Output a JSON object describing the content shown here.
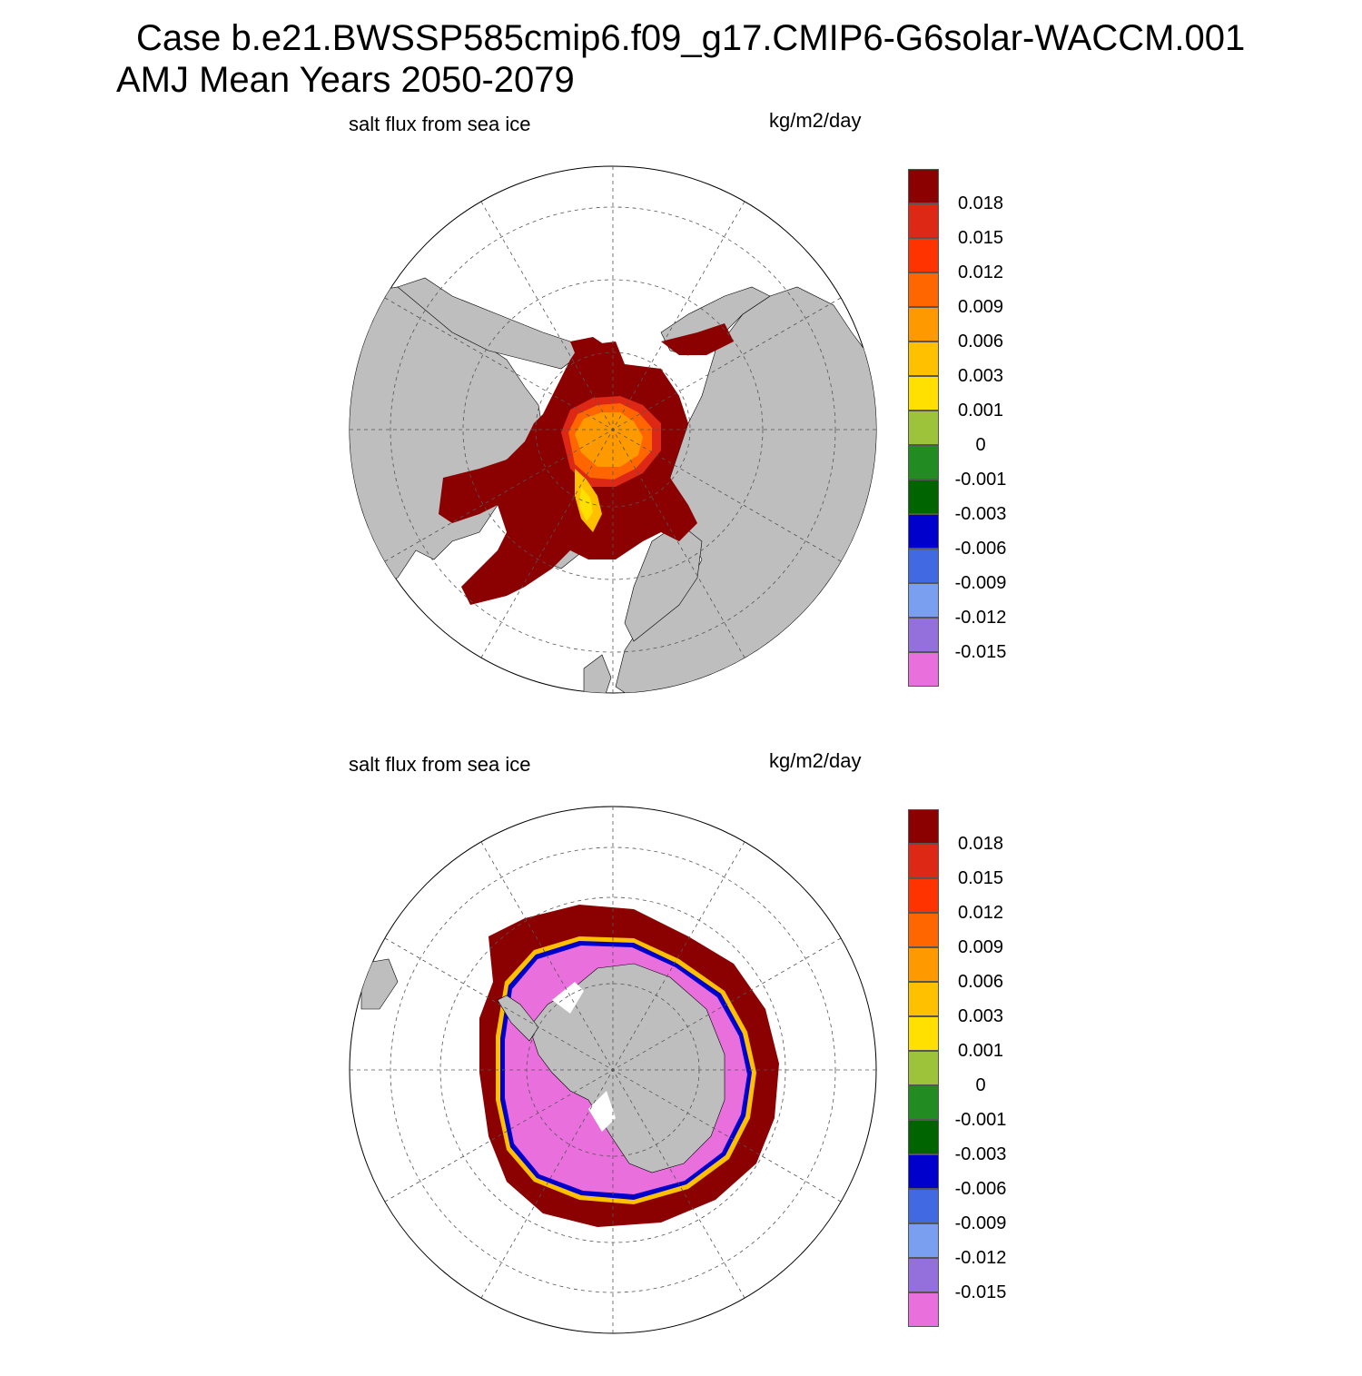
{
  "figure": {
    "title_line1": "Case b.e21.BWSSP585cmip6.f09_g17.CMIP6-G6solar-WACCM.001",
    "title_line2": "AMJ Mean   Years 2050-2079"
  },
  "panels": [
    {
      "id": "north",
      "hemisphere": "Northern Hemisphere polar stereographic",
      "variable": "salt flux from sea ice",
      "units": "kg/m2/day"
    },
    {
      "id": "south",
      "hemisphere": "Southern Hemisphere polar stereographic",
      "variable": "salt flux from sea ice",
      "units": "kg/m2/day"
    }
  ],
  "colorbar": {
    "levels": [
      "0.018",
      "0.015",
      "0.012",
      "0.009",
      "0.006",
      "0.003",
      "0.001",
      "0",
      "-0.001",
      "-0.003",
      "-0.006",
      "-0.009",
      "-0.012",
      "-0.015"
    ],
    "colors": [
      "#8b0000",
      "#dc2814",
      "#ff3300",
      "#ff6600",
      "#ff9900",
      "#ffc000",
      "#ffe000",
      "#9dc33b",
      "#228b22",
      "#006400",
      "#0000cd",
      "#4169e1",
      "#7b9ff0",
      "#9370db",
      "#e86fdc"
    ]
  },
  "map_colors": {
    "land": "#bebebe",
    "ocean": "#ffffff",
    "grid": "#555555"
  }
}
